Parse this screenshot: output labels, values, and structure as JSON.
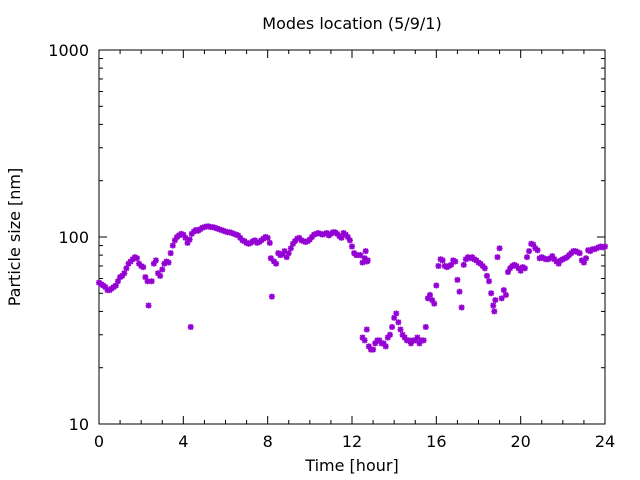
{
  "chart_data": {
    "type": "scatter",
    "title": "Modes location (5/9/1)",
    "xlabel": "Time [hour]",
    "ylabel": "Particle size [nm]",
    "xlim": [
      0,
      24
    ],
    "ylim": [
      10,
      1000
    ],
    "y_scale": "log",
    "grid": false,
    "legend": "none",
    "marker_color": "#9400d3",
    "x_ticks": [
      "0",
      "4",
      "8",
      "12",
      "16",
      "20",
      "24"
    ],
    "y_ticks": [
      "10",
      "100",
      "1000"
    ],
    "series": [
      {
        "points": [
          [
            0.0,
            57
          ],
          [
            0.1,
            56
          ],
          [
            0.2,
            55
          ],
          [
            0.3,
            54
          ],
          [
            0.4,
            52
          ],
          [
            0.5,
            52
          ],
          [
            0.6,
            53
          ],
          [
            0.7,
            54
          ],
          [
            0.8,
            55
          ],
          [
            0.9,
            58
          ],
          [
            1.0,
            61
          ],
          [
            1.1,
            62
          ],
          [
            1.2,
            64
          ],
          [
            1.3,
            68
          ],
          [
            1.4,
            72
          ],
          [
            1.5,
            74
          ],
          [
            1.6,
            76
          ],
          [
            1.7,
            78
          ],
          [
            1.8,
            77
          ],
          [
            1.9,
            72
          ],
          [
            2.0,
            70
          ],
          [
            2.1,
            69
          ],
          [
            2.2,
            61
          ],
          [
            2.3,
            58
          ],
          [
            2.35,
            43
          ],
          [
            2.5,
            58
          ],
          [
            2.6,
            72
          ],
          [
            2.7,
            75
          ],
          [
            2.8,
            64
          ],
          [
            2.9,
            62
          ],
          [
            3.0,
            67
          ],
          [
            3.1,
            72
          ],
          [
            3.2,
            74
          ],
          [
            3.3,
            73
          ],
          [
            3.4,
            82
          ],
          [
            3.5,
            90
          ],
          [
            3.6,
            96
          ],
          [
            3.7,
            100
          ],
          [
            3.8,
            102
          ],
          [
            3.9,
            104
          ],
          [
            4.0,
            103
          ],
          [
            4.1,
            99
          ],
          [
            4.2,
            93
          ],
          [
            4.3,
            97
          ],
          [
            4.35,
            33
          ],
          [
            4.4,
            104
          ],
          [
            4.5,
            107
          ],
          [
            4.6,
            109
          ],
          [
            4.7,
            108
          ],
          [
            4.8,
            110
          ],
          [
            4.9,
            112
          ],
          [
            5.0,
            113
          ],
          [
            5.1,
            114
          ],
          [
            5.2,
            114
          ],
          [
            5.3,
            113
          ],
          [
            5.4,
            113
          ],
          [
            5.5,
            112
          ],
          [
            5.6,
            111
          ],
          [
            5.7,
            110
          ],
          [
            5.8,
            109
          ],
          [
            5.9,
            108
          ],
          [
            6.0,
            107
          ],
          [
            6.1,
            106
          ],
          [
            6.2,
            106
          ],
          [
            6.3,
            105
          ],
          [
            6.4,
            104
          ],
          [
            6.5,
            103
          ],
          [
            6.6,
            102
          ],
          [
            6.7,
            99
          ],
          [
            6.8,
            96
          ],
          [
            6.9,
            95
          ],
          [
            7.0,
            93
          ],
          [
            7.1,
            92
          ],
          [
            7.2,
            93
          ],
          [
            7.3,
            95
          ],
          [
            7.4,
            96
          ],
          [
            7.5,
            93
          ],
          [
            7.6,
            94
          ],
          [
            7.7,
            96
          ],
          [
            7.8,
            98
          ],
          [
            7.9,
            100
          ],
          [
            8.0,
            99
          ],
          [
            8.1,
            93
          ],
          [
            8.15,
            77
          ],
          [
            8.2,
            48
          ],
          [
            8.3,
            74
          ],
          [
            8.4,
            72
          ],
          [
            8.5,
            82
          ],
          [
            8.6,
            80
          ],
          [
            8.7,
            81
          ],
          [
            8.8,
            84
          ],
          [
            8.9,
            78
          ],
          [
            9.0,
            82
          ],
          [
            9.1,
            87
          ],
          [
            9.2,
            92
          ],
          [
            9.3,
            95
          ],
          [
            9.4,
            98
          ],
          [
            9.5,
            99
          ],
          [
            9.6,
            96
          ],
          [
            9.7,
            95
          ],
          [
            9.8,
            94
          ],
          [
            9.9,
            95
          ],
          [
            10.0,
            97
          ],
          [
            10.1,
            100
          ],
          [
            10.2,
            103
          ],
          [
            10.3,
            104
          ],
          [
            10.4,
            105
          ],
          [
            10.5,
            104
          ],
          [
            10.6,
            103
          ],
          [
            10.7,
            104
          ],
          [
            10.8,
            105
          ],
          [
            10.9,
            102
          ],
          [
            11.0,
            104
          ],
          [
            11.1,
            106
          ],
          [
            11.2,
            106
          ],
          [
            11.3,
            104
          ],
          [
            11.4,
            101
          ],
          [
            11.5,
            99
          ],
          [
            11.6,
            105
          ],
          [
            11.7,
            103
          ],
          [
            11.8,
            100
          ],
          [
            11.9,
            96
          ],
          [
            12.0,
            89
          ],
          [
            12.1,
            82
          ],
          [
            12.2,
            80
          ],
          [
            12.3,
            80
          ],
          [
            12.4,
            80
          ],
          [
            12.5,
            73
          ],
          [
            12.6,
            77
          ],
          [
            12.65,
            84
          ],
          [
            12.7,
            74
          ],
          [
            12.75,
            75
          ],
          [
            12.5,
            29
          ],
          [
            12.6,
            28
          ],
          [
            12.7,
            32
          ],
          [
            12.8,
            26
          ],
          [
            12.9,
            25
          ],
          [
            13.0,
            25
          ],
          [
            13.1,
            27
          ],
          [
            13.2,
            28
          ],
          [
            13.3,
            28
          ],
          [
            13.4,
            27
          ],
          [
            13.5,
            27
          ],
          [
            13.6,
            26
          ],
          [
            13.7,
            29
          ],
          [
            13.8,
            30
          ],
          [
            13.9,
            33
          ],
          [
            14.0,
            37
          ],
          [
            14.1,
            39
          ],
          [
            14.2,
            35
          ],
          [
            14.3,
            32
          ],
          [
            14.4,
            30
          ],
          [
            14.5,
            29
          ],
          [
            14.6,
            28
          ],
          [
            14.7,
            28
          ],
          [
            14.8,
            27
          ],
          [
            14.9,
            28
          ],
          [
            15.0,
            28
          ],
          [
            15.1,
            29
          ],
          [
            15.2,
            27
          ],
          [
            15.3,
            28
          ],
          [
            15.4,
            28
          ],
          [
            15.5,
            33
          ],
          [
            15.6,
            47
          ],
          [
            15.7,
            49
          ],
          [
            15.8,
            46
          ],
          [
            15.9,
            44
          ],
          [
            16.0,
            55
          ],
          [
            16.1,
            70
          ],
          [
            16.2,
            76
          ],
          [
            16.3,
            75
          ],
          [
            16.4,
            70
          ],
          [
            16.5,
            69
          ],
          [
            16.6,
            70
          ],
          [
            16.7,
            71
          ],
          [
            16.8,
            75
          ],
          [
            16.9,
            74
          ],
          [
            17.0,
            59
          ],
          [
            17.1,
            51
          ],
          [
            17.2,
            42
          ],
          [
            17.3,
            71
          ],
          [
            17.4,
            76
          ],
          [
            17.5,
            78
          ],
          [
            17.6,
            77
          ],
          [
            17.7,
            78
          ],
          [
            17.8,
            76
          ],
          [
            17.9,
            75
          ],
          [
            18.0,
            73
          ],
          [
            18.1,
            72
          ],
          [
            18.2,
            70
          ],
          [
            18.3,
            68
          ],
          [
            18.4,
            62
          ],
          [
            18.5,
            58
          ],
          [
            18.6,
            50
          ],
          [
            18.7,
            43
          ],
          [
            18.75,
            40
          ],
          [
            18.8,
            46
          ],
          [
            18.9,
            78
          ],
          [
            19.0,
            87
          ],
          [
            19.1,
            47
          ],
          [
            19.2,
            52
          ],
          [
            19.3,
            49
          ],
          [
            19.4,
            65
          ],
          [
            19.5,
            68
          ],
          [
            19.6,
            70
          ],
          [
            19.7,
            71
          ],
          [
            19.8,
            70
          ],
          [
            19.9,
            68
          ],
          [
            20.0,
            66
          ],
          [
            20.1,
            69
          ],
          [
            20.2,
            68
          ],
          [
            20.3,
            78
          ],
          [
            20.4,
            84
          ],
          [
            20.5,
            92
          ],
          [
            20.6,
            91
          ],
          [
            20.7,
            87
          ],
          [
            20.8,
            85
          ],
          [
            20.9,
            77
          ],
          [
            21.0,
            78
          ],
          [
            21.1,
            77
          ],
          [
            21.2,
            76
          ],
          [
            21.3,
            76
          ],
          [
            21.4,
            77
          ],
          [
            21.5,
            79
          ],
          [
            21.6,
            76
          ],
          [
            21.7,
            74
          ],
          [
            21.8,
            72
          ],
          [
            21.9,
            75
          ],
          [
            22.0,
            76
          ],
          [
            22.1,
            77
          ],
          [
            22.2,
            78
          ],
          [
            22.3,
            80
          ],
          [
            22.4,
            82
          ],
          [
            22.5,
            84
          ],
          [
            22.6,
            84
          ],
          [
            22.7,
            83
          ],
          [
            22.8,
            82
          ],
          [
            22.9,
            75
          ],
          [
            23.0,
            73
          ],
          [
            23.1,
            77
          ],
          [
            23.2,
            85
          ],
          [
            23.3,
            84
          ],
          [
            23.4,
            86
          ],
          [
            23.5,
            86
          ],
          [
            23.6,
            87
          ],
          [
            23.7,
            88
          ],
          [
            23.8,
            89
          ],
          [
            23.9,
            88
          ],
          [
            24.0,
            89
          ]
        ]
      }
    ]
  }
}
